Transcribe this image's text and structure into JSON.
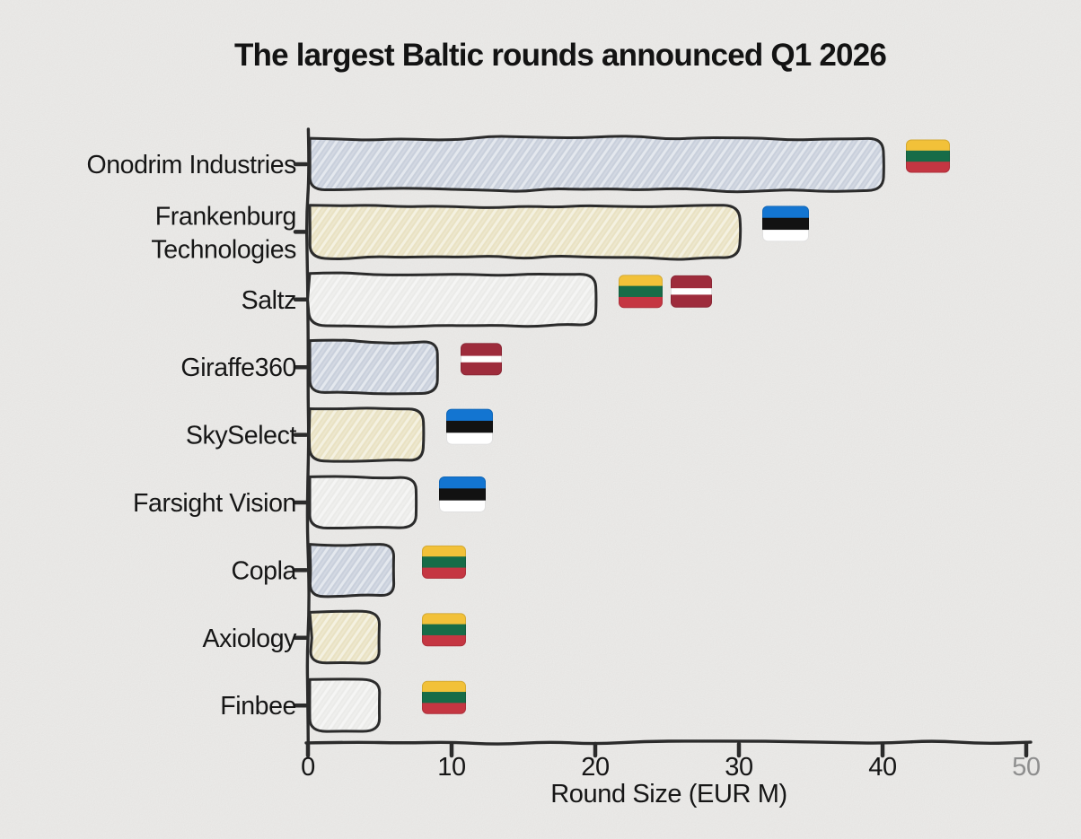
{
  "chart_data": {
    "type": "bar",
    "orientation": "horizontal",
    "style": "hand-drawn xkcd sketch",
    "title": "The largest Baltic rounds announced Q1 2026",
    "xlabel": "Round Size (EUR M)",
    "ylabel": "",
    "xlim": [
      0,
      50
    ],
    "xticks": [
      0,
      10,
      20,
      30,
      40,
      50
    ],
    "grid": false,
    "legend": "none",
    "categories": [
      "Onodrim Industries",
      "Frankenburg Technologies",
      "Saltz",
      "Giraffe360",
      "SkySelect",
      "Farsight Vision",
      "Copla",
      "Axiology",
      "Finbee"
    ],
    "values": [
      40,
      30,
      20,
      9,
      8,
      7.5,
      6,
      5,
      5
    ],
    "country_flags": [
      [
        "lithuania"
      ],
      [
        "estonia"
      ],
      [
        "lithuania",
        "latvia"
      ],
      [
        "latvia"
      ],
      [
        "estonia"
      ],
      [
        "estonia"
      ],
      [
        "lithuania"
      ],
      [
        "lithuania"
      ],
      [
        "lithuania"
      ]
    ],
    "bar_colors": [
      "#c9d0dc",
      "#e9e2c3",
      "#ebebe9",
      "#c9d0dc",
      "#e9e2c3",
      "#ebebe9",
      "#c9d0dc",
      "#e9e2c3",
      "#ebebe9"
    ],
    "flag_colors": {
      "lithuania": {
        "stripes": [
          "#f2c139",
          "#176c48",
          "#c53642"
        ],
        "ratios": [
          1,
          1,
          1
        ]
      },
      "estonia": {
        "stripes": [
          "#1375d1",
          "#121212",
          "#ffffff"
        ],
        "ratios": [
          1,
          1,
          1
        ]
      },
      "latvia": {
        "stripes": [
          "#9e2c3c",
          "#ffffff",
          "#9e2c3c"
        ],
        "ratios": [
          2,
          1,
          2
        ]
      }
    },
    "colors": {
      "background": "#f0efed",
      "ink": "#2b2b2b",
      "text": "#161616",
      "last_tick_muted": "#8e8e8e"
    }
  }
}
